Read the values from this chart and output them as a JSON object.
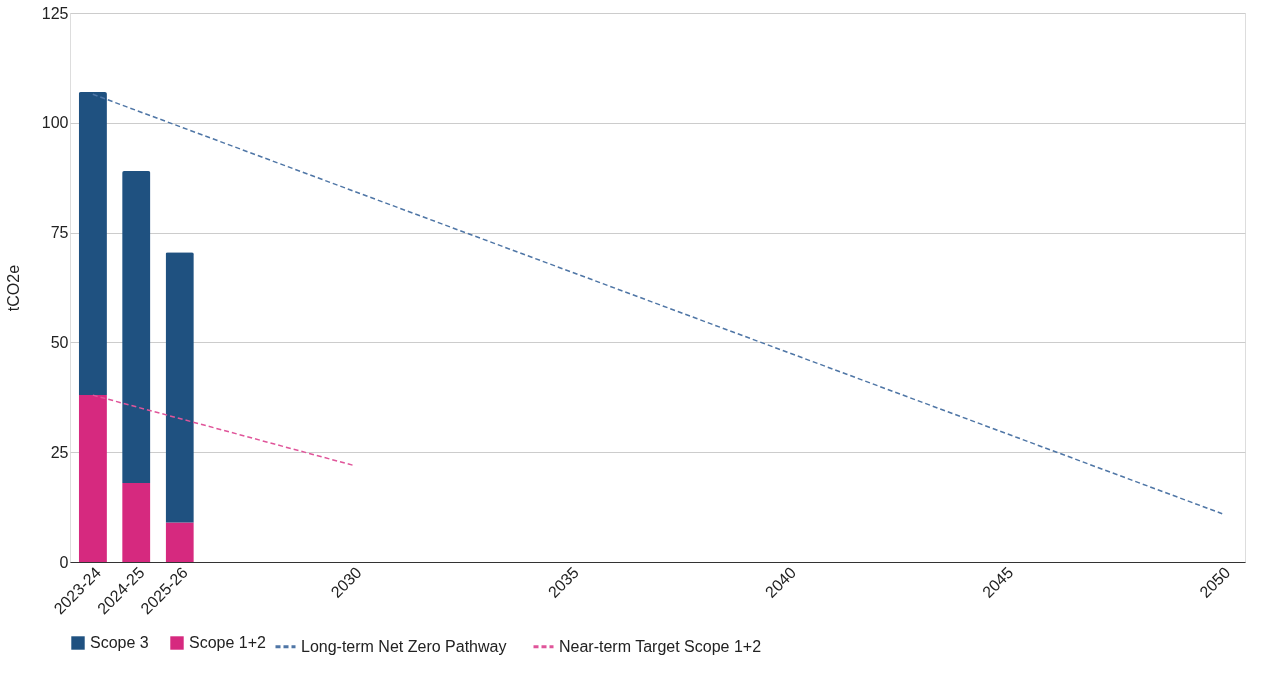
{
  "chart_data": {
    "type": "bar",
    "stacked": true,
    "ylabel": "tCO2e",
    "categories": [
      "2023-24",
      "2024-25",
      "2025-26",
      null,
      null,
      null,
      "2030",
      null,
      null,
      null,
      null,
      "2035",
      null,
      null,
      null,
      null,
      "2040",
      null,
      null,
      null,
      null,
      "2045",
      null,
      null,
      null,
      null,
      "2050"
    ],
    "series": [
      {
        "name": "Long-term Net Zero Pathway",
        "type": "line",
        "line_style": "dashed",
        "color": "#4f76a6",
        "values": [
          106.5,
          null,
          null,
          null,
          null,
          null,
          null,
          null,
          null,
          null,
          null,
          null,
          null,
          null,
          null,
          null,
          null,
          null,
          null,
          null,
          null,
          null,
          null,
          null,
          null,
          null,
          11
        ]
      },
      {
        "name": "Near-term Target Scope 1+2",
        "type": "line",
        "line_style": "dashed",
        "color": "#e0559a",
        "values": [
          38,
          null,
          null,
          null,
          null,
          null,
          22,
          null,
          null,
          null,
          null,
          null,
          null,
          null,
          null,
          null,
          null,
          null,
          null,
          null,
          null,
          null,
          null,
          null,
          null,
          null,
          null
        ]
      },
      {
        "name": "Scope 1+2",
        "color": "#d6297f",
        "values": [
          38,
          18,
          9,
          null,
          null,
          null,
          null,
          null,
          null,
          null,
          null,
          null,
          null,
          null,
          null,
          null,
          null,
          null,
          null,
          null,
          null,
          null,
          null,
          null,
          null,
          null,
          null
        ]
      },
      {
        "name": "Scope 3",
        "color": "#1f5180",
        "values": [
          69,
          71,
          61.5,
          null,
          null,
          null,
          null,
          null,
          null,
          null,
          null,
          null,
          null,
          null,
          null,
          null,
          null,
          null,
          null,
          null,
          null,
          null,
          null,
          null,
          null,
          null,
          null
        ]
      }
    ],
    "ylim": [
      0,
      125
    ],
    "yticks": [
      0,
      25,
      50,
      75,
      100,
      125
    ],
    "grid": "y",
    "legend": "bottom"
  }
}
